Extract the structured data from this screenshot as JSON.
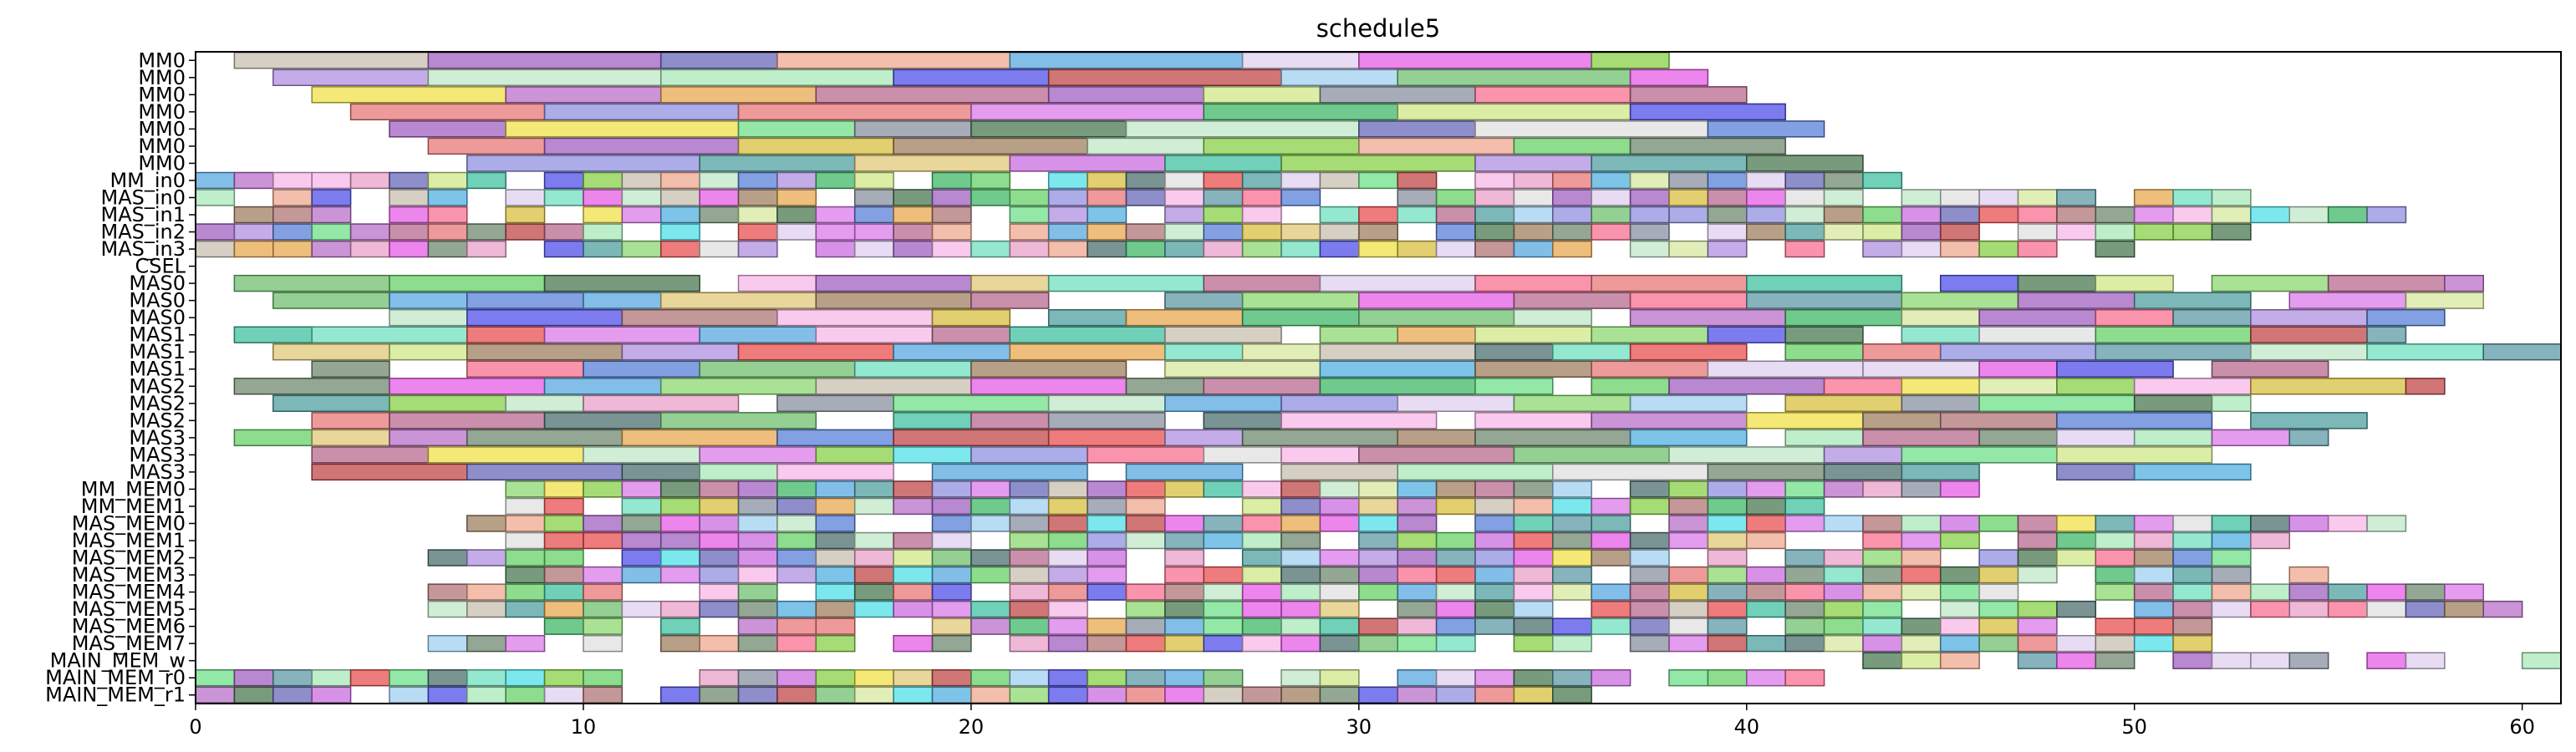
{
  "chart_data": {
    "type": "gantt",
    "title": "schedule5",
    "xlim": [
      0,
      61
    ],
    "xticks": [
      0,
      10,
      20,
      30,
      40,
      50,
      60
    ],
    "rows": [
      "MM0",
      "MM0",
      "MM0",
      "MM0",
      "MM0",
      "MM0",
      "MM0",
      "MM_in0",
      "MAS_in0",
      "MAS_in1",
      "MAS_in2",
      "MAS_in3",
      "CSEL",
      "MAS0",
      "MAS0",
      "MAS0",
      "MAS1",
      "MAS1",
      "MAS1",
      "MAS2",
      "MAS2",
      "MAS2",
      "MAS3",
      "MAS3",
      "MAS3",
      "MM_MEM0",
      "MM_MEM1",
      "MAS_MEM0",
      "MAS_MEM1",
      "MAS_MEM2",
      "MAS_MEM3",
      "MAS_MEM4",
      "MAS_MEM5",
      "MAS_MEM6",
      "MAS_MEM7",
      "MAIN_MEM_w",
      "MAIN_MEM_r0",
      "MAIN_MEM_r1"
    ],
    "palette": [
      "#d97be8",
      "#b86a8f",
      "#5e9aa6",
      "#b07575",
      "#6fe08a",
      "#e65ce6",
      "#c96de0",
      "#a8e8b8",
      "#8cd870",
      "#52b0e0",
      "#d8e8a0",
      "#4a7a50",
      "#b870c8",
      "#d0e888",
      "#f8b8e8",
      "#5880d8",
      "#f0a890",
      "#88d048",
      "#50e0e8",
      "#40b868",
      "#e8a850",
      "#c0e8c8",
      "#e85050",
      "#9090e0",
      "#5050e8",
      "#e87878",
      "#70c070",
      "#a08060",
      "#58a8e0",
      "#e0c878",
      "#c8c0b0",
      "#70e0c0",
      "#a060c0",
      "#f0e048",
      "#6868b8",
      "#e8a0c8",
      "#c04848",
      "#40c0a0",
      "#e0d0f0",
      "#8890a0",
      "#708870",
      "#f87090",
      "#a0d0f0",
      "#50a0a0",
      "#d8c040",
      "#b090e0",
      "#4d7070",
      "#68d068",
      "#e0e0e0"
    ]
  }
}
